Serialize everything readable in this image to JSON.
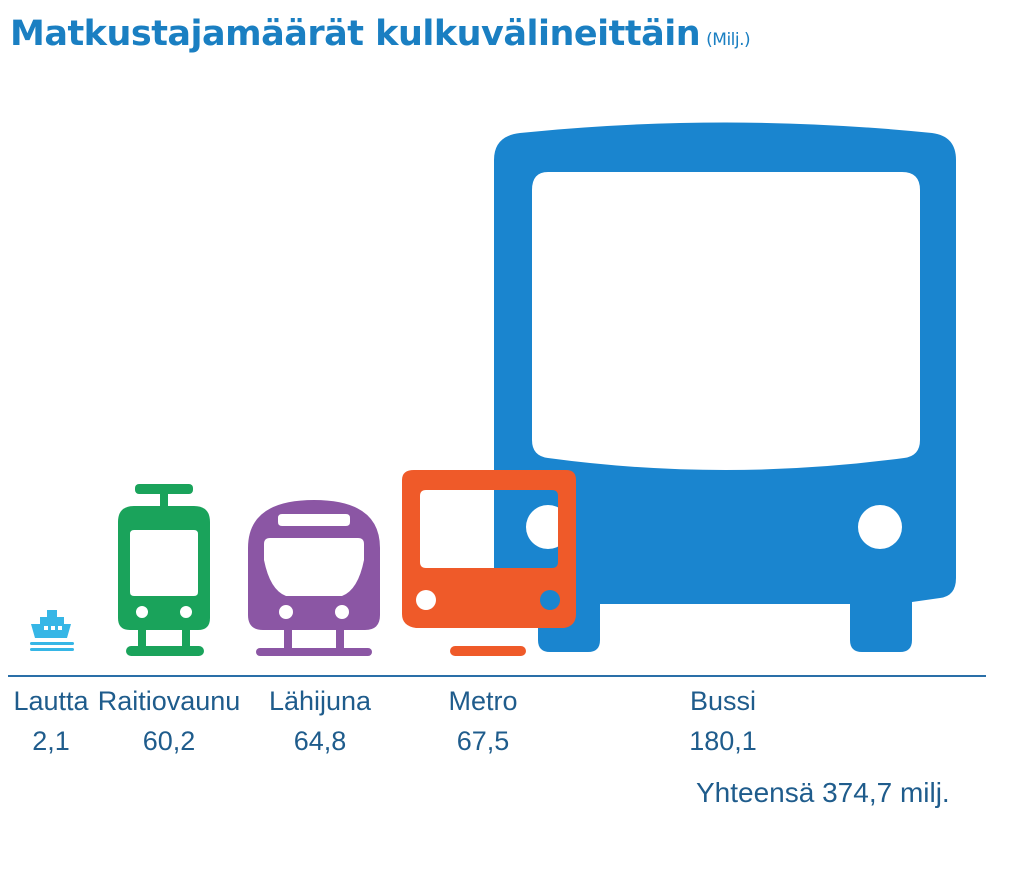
{
  "chart_data": {
    "type": "bar",
    "title": "Matkustajamäärät kulkuvälineittäin",
    "unit": "(Milj.)",
    "categories": [
      "Lautta",
      "Raitiovaunu",
      "Lähijuna",
      "Metro",
      "Bussi"
    ],
    "values": [
      2.1,
      60.2,
      64.8,
      67.5,
      180.1
    ],
    "value_labels": [
      "2,1",
      "60,2",
      "64,8",
      "67,5",
      "180,1"
    ],
    "icons": [
      "ferry-icon",
      "tram-icon",
      "commuter-train-icon",
      "metro-icon",
      "bus-icon"
    ],
    "colors": [
      "#36b6e6",
      "#1aa35b",
      "#8b56a4",
      "#ef5a29",
      "#1a85cf"
    ],
    "total_label": "Yhteensä 374,7 milj.",
    "xlabel": "",
    "ylabel": ""
  }
}
